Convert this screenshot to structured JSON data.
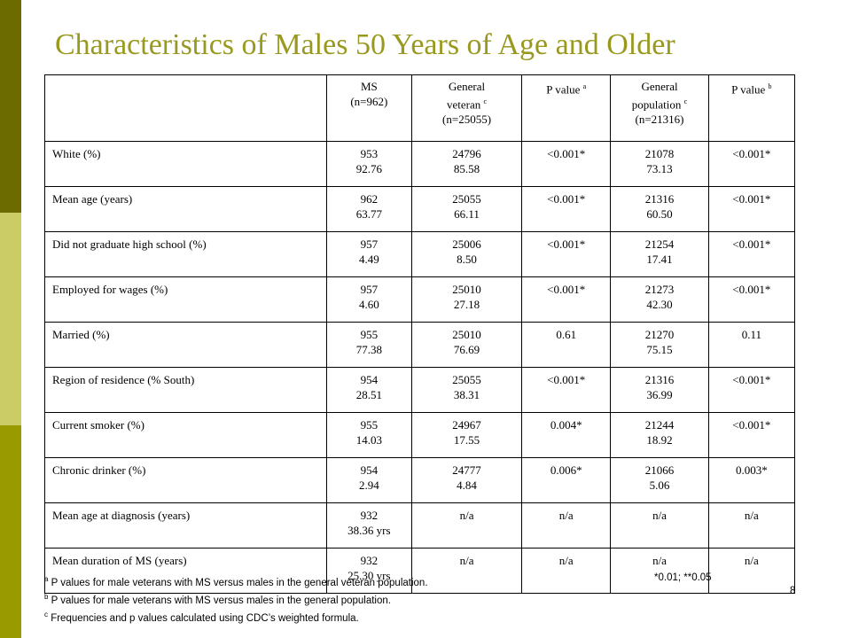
{
  "title": "Characteristics of Males 50 Years of Age and Older",
  "headers": [
    {
      "lines": [
        ""
      ]
    },
    {
      "lines": [
        "MS",
        "(n=962)"
      ]
    },
    {
      "lines": [
        "General",
        "veteran",
        "(n=25055)"
      ],
      "sup_line": 1,
      "sup": "c"
    },
    {
      "lines": [
        "P value"
      ],
      "sup_line": 0,
      "sup": "a"
    },
    {
      "lines": [
        "General",
        "population",
        "(n=21316)"
      ],
      "sup_line": 1,
      "sup": "c"
    },
    {
      "lines": [
        "P value"
      ],
      "sup_line": 0,
      "sup": "b"
    }
  ],
  "rows": [
    {
      "label": "White (%)",
      "ms": [
        "953",
        "92.76"
      ],
      "vet": [
        "24796",
        "85.58"
      ],
      "p1": "<0.001*",
      "pop": [
        "21078",
        "73.13"
      ],
      "p2": "<0.001*"
    },
    {
      "label": "Mean age (years)",
      "ms": [
        "962",
        "63.77"
      ],
      "vet": [
        "25055",
        "66.11"
      ],
      "p1": "<0.001*",
      "pop": [
        "21316",
        "60.50"
      ],
      "p2": "<0.001*"
    },
    {
      "label": "Did not graduate high school (%)",
      "ms": [
        "957",
        "4.49"
      ],
      "vet": [
        "25006",
        "8.50"
      ],
      "p1": "<0.001*",
      "pop": [
        "21254",
        "17.41"
      ],
      "p2": "<0.001*"
    },
    {
      "label": "Employed for wages (%)",
      "ms": [
        "957",
        "4.60"
      ],
      "vet": [
        "25010",
        "27.18"
      ],
      "p1": "<0.001*",
      "pop": [
        "21273",
        "42.30"
      ],
      "p2": "<0.001*"
    },
    {
      "label": "Married (%)",
      "ms": [
        "955",
        "77.38"
      ],
      "vet": [
        "25010",
        "76.69"
      ],
      "p1": "0.61",
      "pop": [
        "21270",
        "75.15"
      ],
      "p2": "0.11"
    },
    {
      "label": "Region of residence (% South)",
      "ms": [
        "954",
        "28.51"
      ],
      "vet": [
        "25055",
        "38.31"
      ],
      "p1": "<0.001*",
      "pop": [
        "21316",
        "36.99"
      ],
      "p2": "<0.001*"
    },
    {
      "label": "Current smoker (%)",
      "ms": [
        "955",
        "14.03"
      ],
      "vet": [
        "24967",
        "17.55"
      ],
      "p1": "0.004*",
      "pop": [
        "21244",
        "18.92"
      ],
      "p2": "<0.001*"
    },
    {
      "label": "Chronic drinker (%)",
      "ms": [
        "954",
        "2.94"
      ],
      "vet": [
        "24777",
        "4.84"
      ],
      "p1": "0.006*",
      "pop": [
        "21066",
        "5.06"
      ],
      "p2": "0.003*"
    },
    {
      "label": "Mean age at diagnosis (years)",
      "ms": [
        "932",
        "38.36 yrs"
      ],
      "vet": [
        "n/a"
      ],
      "p1": "n/a",
      "pop": [
        "n/a"
      ],
      "p2": "n/a"
    },
    {
      "label": "Mean duration of MS (years)",
      "ms": [
        "932",
        "25.30 yrs"
      ],
      "vet": [
        "n/a"
      ],
      "p1": "n/a",
      "pop": [
        "n/a"
      ],
      "p2": "n/a"
    }
  ],
  "footnotes": [
    {
      "sup": "a",
      "text": " P values for male veterans with MS versus males in the general veteran population."
    },
    {
      "sup": "b",
      "text": " P values for male veterans with MS versus males in the general population."
    },
    {
      "sup": "c",
      "text": " Frequencies and p values calculated using CDC’s weighted formula."
    }
  ],
  "significance": "*0.01; **0.05",
  "page_number": "8",
  "colors": {
    "title": "#99991f",
    "bar_dark": "#6b6b00",
    "bar_light": "#cccc66",
    "bar_mid": "#999900"
  }
}
